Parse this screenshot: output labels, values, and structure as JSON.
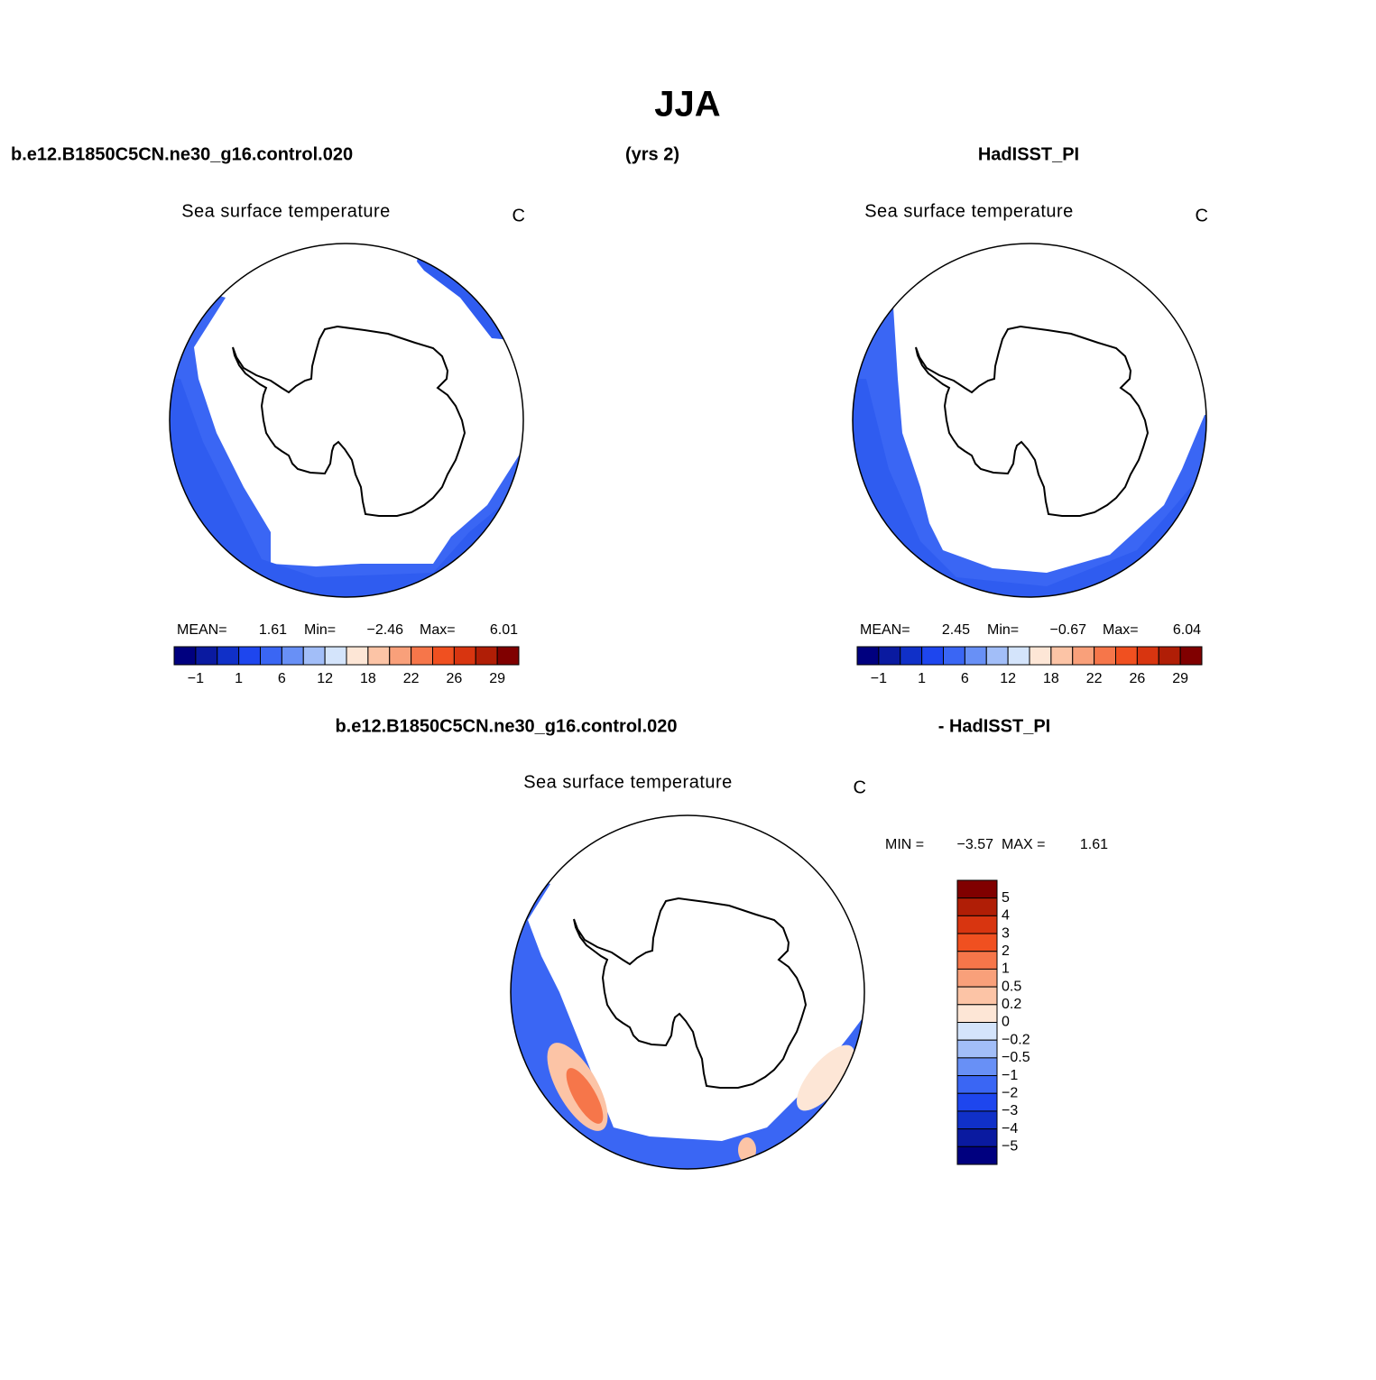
{
  "title": "JJA",
  "header": {
    "left": "b.e12.B1850C5CN.ne30_g16.control.020",
    "center": "(yrs 2)",
    "right": "HadISST_PI"
  },
  "panels": [
    {
      "subtitle": "Sea surface temperature",
      "units": "C",
      "stats": [
        "MEAN=",
        "1.61",
        "Min=",
        "−2.46",
        "Max=",
        "6.01"
      ],
      "colorbar": {
        "labels": [
          "−1",
          "1",
          "6",
          "12",
          "18",
          "22",
          "26",
          "29"
        ],
        "colors": [
          "#00007f",
          "#0a1aa0",
          "#1030c8",
          "#1e46ee",
          "#3a66f4",
          "#6890f6",
          "#a2bef8",
          "#d4e4fb",
          "#fde6d6",
          "#fcc4a6",
          "#f9a07a",
          "#f6764a",
          "#f05020",
          "#d83510",
          "#b01e06",
          "#800000"
        ]
      }
    },
    {
      "subtitle": "Sea surface temperature",
      "units": "C",
      "stats": [
        "MEAN=",
        "2.45",
        "Min=",
        "−0.67",
        "Max=",
        "6.04"
      ],
      "colorbar": {
        "labels": [
          "−1",
          "1",
          "6",
          "12",
          "18",
          "22",
          "26",
          "29"
        ],
        "colors": [
          "#00007f",
          "#0a1aa0",
          "#1030c8",
          "#1e46ee",
          "#3a66f4",
          "#6890f6",
          "#a2bef8",
          "#d4e4fb",
          "#fde6d6",
          "#fcc4a6",
          "#f9a07a",
          "#f6764a",
          "#f05020",
          "#d83510",
          "#b01e06",
          "#800000"
        ]
      }
    }
  ],
  "difference": {
    "header_left": "b.e12.B1850C5CN.ne30_g16.control.020",
    "header_right": "- HadISST_PI",
    "subtitle": "Sea surface temperature",
    "units": "C",
    "stats": [
      "MIN =",
      "−3.57",
      "MAX =",
      "1.61"
    ],
    "colorbar": {
      "labels": [
        "5",
        "4",
        "3",
        "2",
        "1",
        "0.5",
        "0.2",
        "0",
        "−0.2",
        "−0.5",
        "−1",
        "−2",
        "−3",
        "−4",
        "−5"
      ],
      "colors": [
        "#800000",
        "#b01e06",
        "#d83510",
        "#f05020",
        "#f6764a",
        "#f9a07a",
        "#fcc4a6",
        "#fde6d6",
        "#d4e4fb",
        "#a2bef8",
        "#6890f6",
        "#3a66f4",
        "#1e46ee",
        "#1030c8",
        "#0a1aa0",
        "#00007f"
      ]
    }
  }
}
